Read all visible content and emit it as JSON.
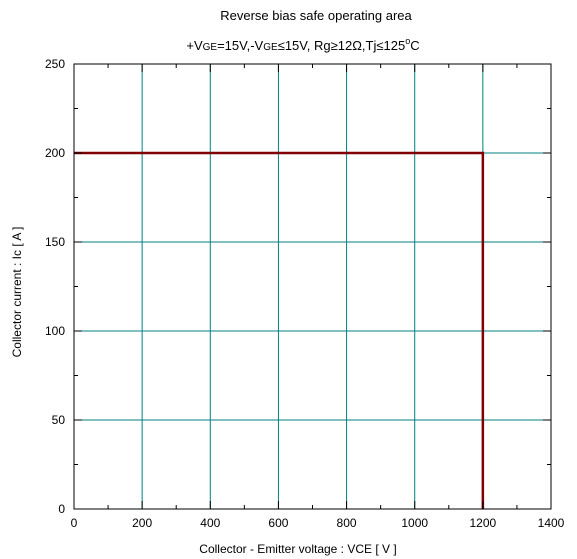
{
  "chart_data": {
    "type": "line",
    "title": "Reverse bias safe operating area",
    "subtitle": {
      "p1": "+V",
      "p2": "GE",
      "p3": "=15V,-V",
      "p4": "GE",
      "p5": "≤",
      "p6": "15V, Rg",
      "p7": "≥",
      "p8": "12Ω,Tj",
      "p9": "≤",
      "p10": "125",
      "p11": "o",
      "p12": "C"
    },
    "xlabel": "Collector - Emitter voltage  :  VCE  [ V ]",
    "ylabel": "Collector current  : Ic  [ A ]",
    "xlim": [
      0,
      1400
    ],
    "ylim": [
      0,
      250
    ],
    "xticks": [
      0,
      200,
      400,
      600,
      800,
      1000,
      1200,
      1400
    ],
    "yticks": [
      0,
      50,
      100,
      150,
      200,
      250
    ],
    "grid": true,
    "series": [
      {
        "color": "#800000",
        "x": [
          0,
          1200,
          1200
        ],
        "y": [
          200,
          200,
          0
        ]
      }
    ],
    "grid_color": "#008080"
  }
}
